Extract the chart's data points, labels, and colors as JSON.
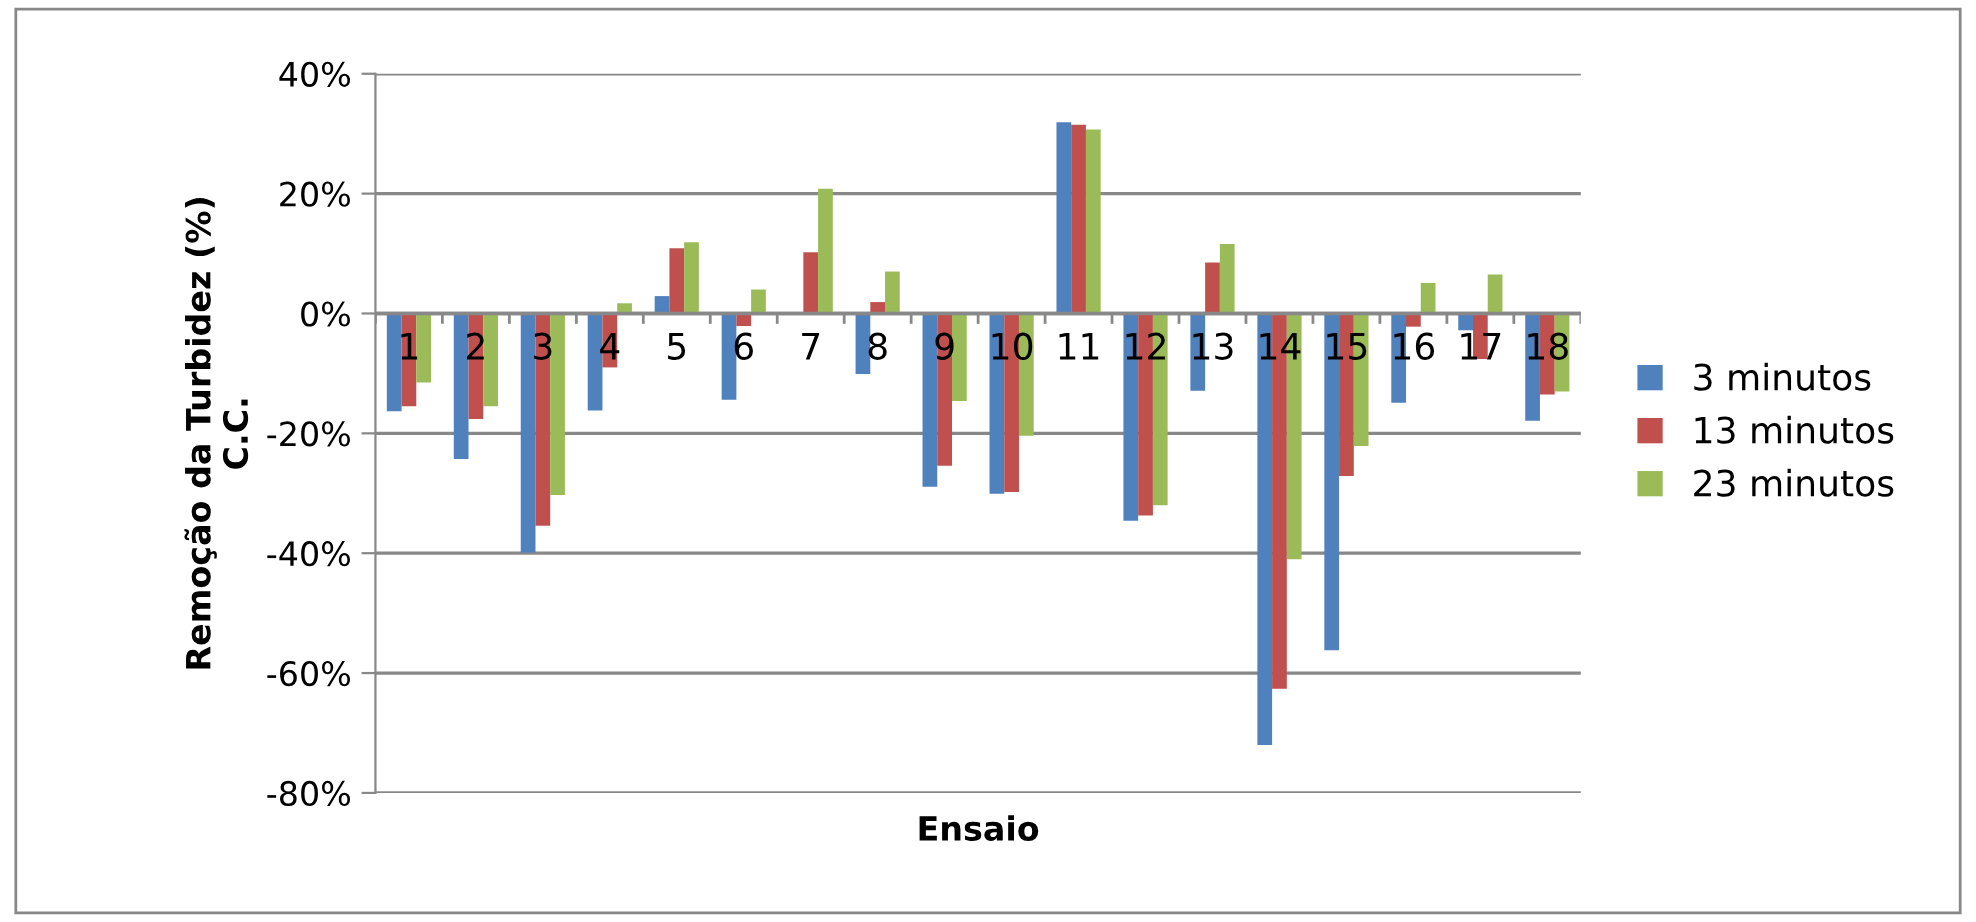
{
  "chart_data": {
    "type": "bar",
    "xlabel": "Ensaio",
    "ylabel": "Remoção da Turbidez (%)\nC.C.",
    "categories": [
      "1",
      "2",
      "3",
      "4",
      "5",
      "6",
      "7",
      "8",
      "9",
      "10",
      "11",
      "12",
      "13",
      "14",
      "15",
      "16",
      "17",
      "18"
    ],
    "series": [
      {
        "name": "3 minutos",
        "color": "#4f81bd",
        "values": [
          -16.3,
          -24.3,
          -39.9,
          -16.2,
          2.9,
          -14.4,
          0,
          -10.1,
          -28.9,
          -30.1,
          31.9,
          -34.6,
          -12.9,
          -72.0,
          -56.2,
          -14.9,
          -2.8,
          -17.9
        ]
      },
      {
        "name": "13 minutos",
        "color": "#c0504d",
        "values": [
          -15.5,
          -17.6,
          -35.4,
          -9.0,
          10.9,
          -2.1,
          10.2,
          1.9,
          -25.4,
          -29.8,
          31.5,
          -33.7,
          8.5,
          -62.6,
          -27.1,
          -2.2,
          -7.6,
          -13.5
        ]
      },
      {
        "name": "23 minutos",
        "color": "#9bbb59",
        "values": [
          -11.5,
          -15.5,
          -30.3,
          1.7,
          11.9,
          4.0,
          20.8,
          7.0,
          -14.6,
          -20.4,
          30.7,
          -32.0,
          11.6,
          -41.0,
          -22.1,
          5.1,
          6.5,
          -13.0
        ]
      }
    ],
    "ylim": [
      -80,
      40
    ],
    "yticks": [
      {
        "value": -80,
        "label": "-80%"
      },
      {
        "value": -60,
        "label": "-60%"
      },
      {
        "value": -40,
        "label": "-40%"
      },
      {
        "value": -20,
        "label": "-20%"
      },
      {
        "value": 0,
        "label": "0%"
      },
      {
        "value": 20,
        "label": "20%"
      },
      {
        "value": 40,
        "label": "40%"
      }
    ],
    "grid": "y",
    "legend": "right"
  }
}
